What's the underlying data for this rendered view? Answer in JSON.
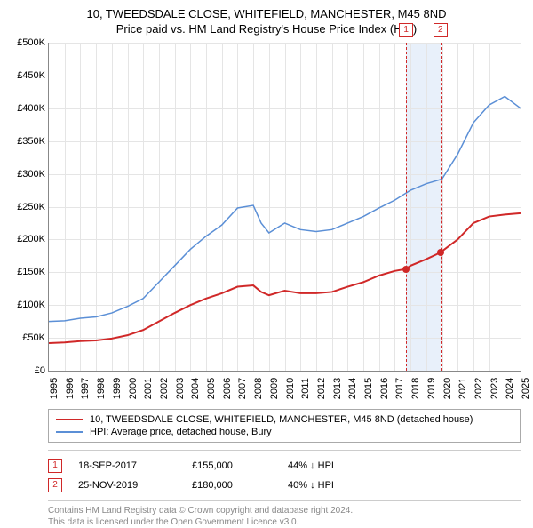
{
  "title": {
    "main": "10, TWEEDSDALE CLOSE, WHITEFIELD, MANCHESTER, M45 8ND",
    "sub": "Price paid vs. HM Land Registry's House Price Index (HPI)"
  },
  "chart": {
    "type": "line",
    "background_color": "#ffffff",
    "grid_color": "#e5e5e5",
    "axis_color": "#888888",
    "x": {
      "min": 1995,
      "max": 2025,
      "step": 1,
      "labels": [
        "1995",
        "1996",
        "1997",
        "1998",
        "1999",
        "2000",
        "2001",
        "2002",
        "2003",
        "2004",
        "2005",
        "2006",
        "2007",
        "2008",
        "2009",
        "2010",
        "2011",
        "2012",
        "2013",
        "2014",
        "2015",
        "2016",
        "2017",
        "2018",
        "2019",
        "2020",
        "2021",
        "2022",
        "2023",
        "2024",
        "2025"
      ]
    },
    "y": {
      "min": 0,
      "max": 500000,
      "step": 50000,
      "labels": [
        "£0",
        "£50K",
        "£100K",
        "£150K",
        "£200K",
        "£250K",
        "£300K",
        "£350K",
        "£400K",
        "£450K",
        "£500K"
      ]
    },
    "shaded_band": {
      "x_start": 2017.72,
      "x_end": 2019.9,
      "fill": "#e8f0fa"
    },
    "series": [
      {
        "name": "price_paid",
        "label": "10, TWEEDSDALE CLOSE, WHITEFIELD, MANCHESTER, M45 8ND (detached house)",
        "color": "#d02828",
        "line_width": 2,
        "data": [
          [
            1995,
            42000
          ],
          [
            1996,
            43000
          ],
          [
            1997,
            45000
          ],
          [
            1998,
            46000
          ],
          [
            1999,
            49000
          ],
          [
            2000,
            54000
          ],
          [
            2001,
            62000
          ],
          [
            2002,
            75000
          ],
          [
            2003,
            88000
          ],
          [
            2004,
            100000
          ],
          [
            2005,
            110000
          ],
          [
            2006,
            118000
          ],
          [
            2007,
            128000
          ],
          [
            2008,
            130000
          ],
          [
            2008.5,
            120000
          ],
          [
            2009,
            115000
          ],
          [
            2010,
            122000
          ],
          [
            2011,
            118000
          ],
          [
            2012,
            118000
          ],
          [
            2013,
            120000
          ],
          [
            2014,
            128000
          ],
          [
            2015,
            135000
          ],
          [
            2016,
            145000
          ],
          [
            2017,
            152000
          ],
          [
            2017.72,
            155000
          ],
          [
            2018,
            160000
          ],
          [
            2019,
            170000
          ],
          [
            2019.9,
            180000
          ],
          [
            2020,
            182000
          ],
          [
            2021,
            200000
          ],
          [
            2022,
            225000
          ],
          [
            2023,
            235000
          ],
          [
            2024,
            238000
          ],
          [
            2025,
            240000
          ]
        ]
      },
      {
        "name": "hpi",
        "label": "HPI: Average price, detached house, Bury",
        "color": "#5b8fd6",
        "line_width": 1.5,
        "data": [
          [
            1995,
            75000
          ],
          [
            1996,
            76000
          ],
          [
            1997,
            80000
          ],
          [
            1998,
            82000
          ],
          [
            1999,
            88000
          ],
          [
            2000,
            98000
          ],
          [
            2001,
            110000
          ],
          [
            2002,
            135000
          ],
          [
            2003,
            160000
          ],
          [
            2004,
            185000
          ],
          [
            2005,
            205000
          ],
          [
            2006,
            222000
          ],
          [
            2007,
            248000
          ],
          [
            2008,
            252000
          ],
          [
            2008.5,
            225000
          ],
          [
            2009,
            210000
          ],
          [
            2010,
            225000
          ],
          [
            2011,
            215000
          ],
          [
            2012,
            212000
          ],
          [
            2013,
            215000
          ],
          [
            2014,
            225000
          ],
          [
            2015,
            235000
          ],
          [
            2016,
            248000
          ],
          [
            2017,
            260000
          ],
          [
            2018,
            275000
          ],
          [
            2019,
            285000
          ],
          [
            2020,
            292000
          ],
          [
            2021,
            330000
          ],
          [
            2022,
            378000
          ],
          [
            2023,
            405000
          ],
          [
            2024,
            418000
          ],
          [
            2025,
            400000
          ]
        ]
      }
    ],
    "markers": [
      {
        "n": "1",
        "x": 2017.72,
        "y": 155000,
        "line_color": "#d02828",
        "box_color": "#d02828"
      },
      {
        "n": "2",
        "x": 2019.9,
        "y": 180000,
        "line_color": "#d02828",
        "box_color": "#d02828"
      }
    ],
    "label_fontsize": 11
  },
  "legend": {
    "items": [
      {
        "color": "#d02828",
        "label": "10, TWEEDSDALE CLOSE, WHITEFIELD, MANCHESTER, M45 8ND (detached house)"
      },
      {
        "color": "#5b8fd6",
        "label": "HPI: Average price, detached house, Bury"
      }
    ]
  },
  "transactions": [
    {
      "n": "1",
      "date": "18-SEP-2017",
      "price": "£155,000",
      "diff": "44% ↓ HPI"
    },
    {
      "n": "2",
      "date": "25-NOV-2019",
      "price": "£180,000",
      "diff": "40% ↓ HPI"
    }
  ],
  "copyright": {
    "line1": "Contains HM Land Registry data © Crown copyright and database right 2024.",
    "line2": "This data is licensed under the Open Government Licence v3.0."
  }
}
